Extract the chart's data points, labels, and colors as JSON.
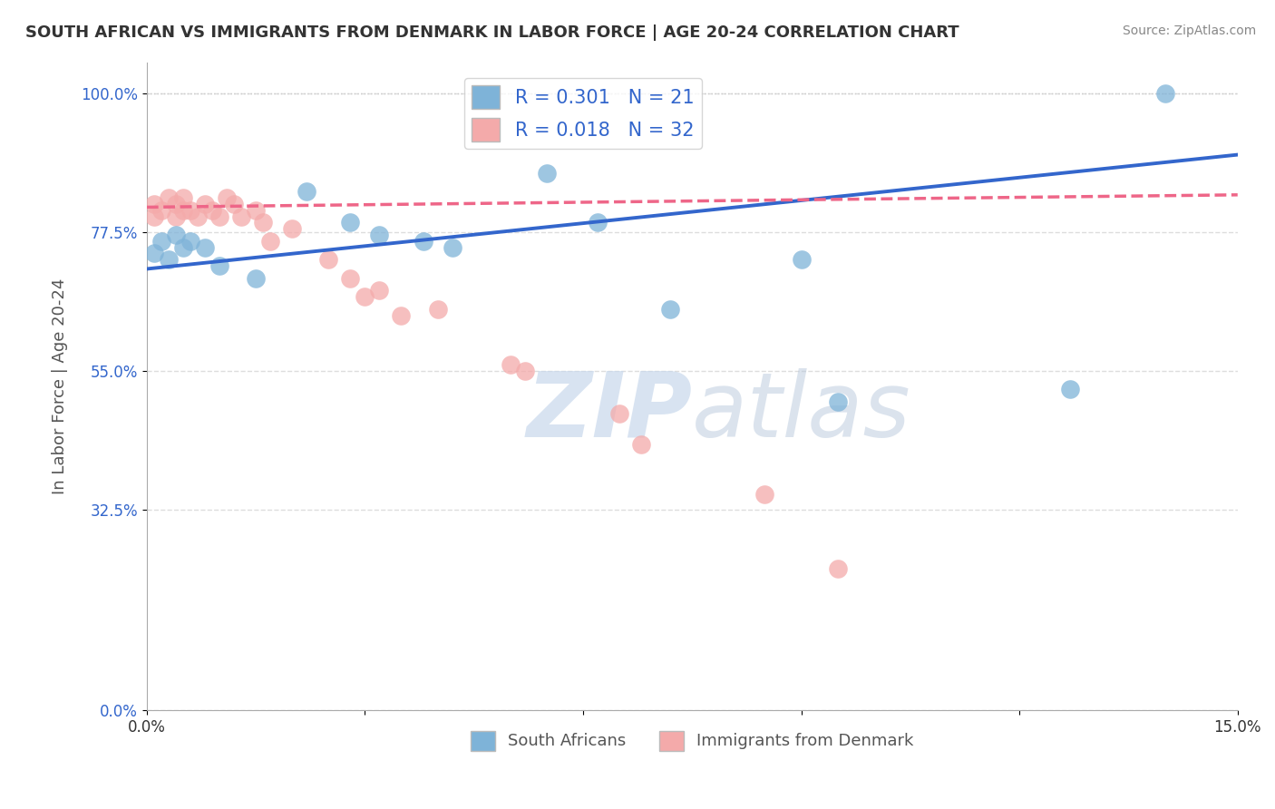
{
  "title": "SOUTH AFRICAN VS IMMIGRANTS FROM DENMARK IN LABOR FORCE | AGE 20-24 CORRELATION CHART",
  "source": "Source: ZipAtlas.com",
  "ylabel": "In Labor Force | Age 20-24",
  "xlabel": "",
  "xlim": [
    0.0,
    0.15
  ],
  "ylim": [
    0.0,
    1.05
  ],
  "yticks": [
    0.0,
    0.325,
    0.55,
    0.775,
    1.0
  ],
  "ytick_labels": [
    "0.0%",
    "32.5%",
    "55.0%",
    "77.5%",
    "100.0%"
  ],
  "xticks": [
    0.0,
    0.03,
    0.06,
    0.09,
    0.12,
    0.15
  ],
  "xtick_labels": [
    "0.0%",
    "",
    "",
    "",
    "",
    "15.0%"
  ],
  "blue_color": "#7EB3D8",
  "pink_color": "#F4AAAA",
  "blue_line_color": "#3366CC",
  "pink_line_color": "#EE6688",
  "r_blue": 0.301,
  "n_blue": 21,
  "r_pink": 0.018,
  "n_pink": 32,
  "legend_label_blue": "South Africans",
  "legend_label_pink": "Immigrants from Denmark",
  "blue_points_x": [
    0.001,
    0.002,
    0.003,
    0.004,
    0.005,
    0.006,
    0.008,
    0.01,
    0.015,
    0.022,
    0.028,
    0.032,
    0.038,
    0.042,
    0.055,
    0.062,
    0.072,
    0.09,
    0.095,
    0.127,
    0.14
  ],
  "blue_points_y": [
    0.74,
    0.76,
    0.73,
    0.77,
    0.75,
    0.76,
    0.75,
    0.72,
    0.7,
    0.84,
    0.79,
    0.77,
    0.76,
    0.75,
    0.87,
    0.79,
    0.65,
    0.73,
    0.5,
    0.52,
    1.0
  ],
  "pink_points_x": [
    0.001,
    0.001,
    0.002,
    0.003,
    0.004,
    0.004,
    0.005,
    0.005,
    0.006,
    0.007,
    0.008,
    0.009,
    0.01,
    0.011,
    0.012,
    0.013,
    0.015,
    0.016,
    0.017,
    0.02,
    0.025,
    0.028,
    0.03,
    0.032,
    0.035,
    0.04,
    0.05,
    0.052,
    0.065,
    0.068,
    0.085,
    0.095
  ],
  "pink_points_y": [
    0.8,
    0.82,
    0.81,
    0.83,
    0.8,
    0.82,
    0.81,
    0.83,
    0.81,
    0.8,
    0.82,
    0.81,
    0.8,
    0.83,
    0.82,
    0.8,
    0.81,
    0.79,
    0.76,
    0.78,
    0.73,
    0.7,
    0.67,
    0.68,
    0.64,
    0.65,
    0.56,
    0.55,
    0.48,
    0.43,
    0.35,
    0.23
  ],
  "blue_line_x0": 0.0,
  "blue_line_y0": 0.715,
  "blue_line_x1": 0.15,
  "blue_line_y1": 0.9,
  "pink_line_x0": 0.0,
  "pink_line_y0": 0.815,
  "pink_line_x1": 0.15,
  "pink_line_y1": 0.835,
  "watermark_zip": "ZIP",
  "watermark_atlas": "atlas",
  "background_color": "#FFFFFF",
  "grid_color": "#DDDDDD"
}
